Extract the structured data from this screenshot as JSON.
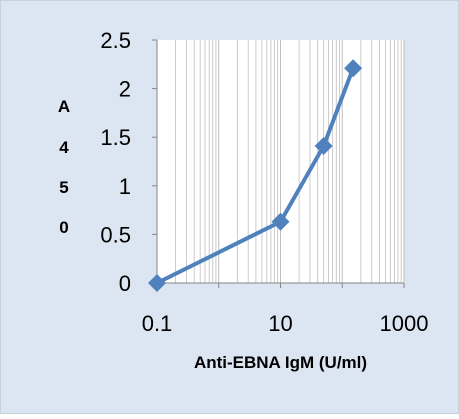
{
  "colors": {
    "background": "#dce6f2",
    "frame_border": "#c8d0da",
    "plot_area": "#ffffff",
    "gridline": "#bfbfbf",
    "series": "#4f81bd"
  },
  "chart_data": {
    "type": "scatter",
    "title": "",
    "xlabel": "Anti-EBNA IgM (U/ml)",
    "ylabel": "A450",
    "ylabel_chars": [
      "A",
      "4",
      "5",
      "0"
    ],
    "x_scale": "log10",
    "xlim": [
      0.1,
      1000
    ],
    "ylim": [
      0,
      2.5
    ],
    "x_ticks": [
      0.1,
      10,
      1000
    ],
    "x_tick_labels": [
      "0.1",
      "10",
      "1000"
    ],
    "y_ticks": [
      0,
      0.5,
      1,
      1.5,
      2,
      2.5
    ],
    "y_tick_labels": [
      "0",
      "0.5",
      "1",
      "1.5",
      "2",
      "2.5"
    ],
    "grid": {
      "vertical_minor_log": true,
      "horizontal": false
    },
    "legend": "none",
    "series": [
      {
        "x": [
          0.1,
          10,
          50,
          150
        ],
        "y": [
          0,
          0.63,
          1.41,
          2.21
        ],
        "marker": "diamond",
        "line": true
      }
    ]
  }
}
